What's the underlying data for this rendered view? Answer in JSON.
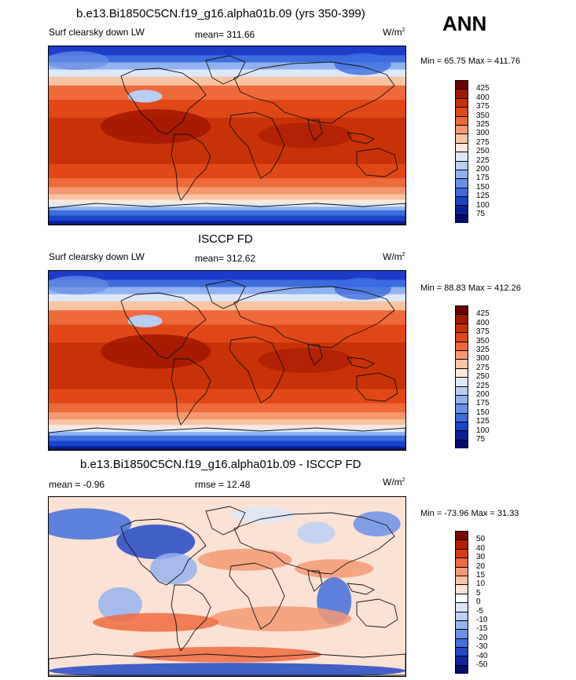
{
  "season": "ANN",
  "colors": {
    "pos": [
      "#fbe6d6",
      "#f9c5a5",
      "#f5a07a",
      "#ef7a50",
      "#e85a30",
      "#de4216",
      "#c83008",
      "#a81e02",
      "#8a1202",
      "#6b0a00"
    ],
    "neg": [
      "#dce8fb",
      "#bcd2f7",
      "#9cbcf3",
      "#7aa3ee",
      "#5a89e6",
      "#3c6fde",
      "#2455d4",
      "#1538b8",
      "#0a2090",
      "#030b6b"
    ]
  },
  "panels": [
    {
      "title": "b.e13.Bi1850C5CN.f19_g16.alpha01b.09 (yrs 350-399)",
      "left_label": "Surf clearsky down LW",
      "center_label": "mean= 311.66",
      "units": "W/m",
      "units_sup": "2",
      "minmax": "Min =  65.75 Max = 411.76"
    },
    {
      "title": "ISCCP FD",
      "left_label": "Surf clearsky down LW",
      "center_label": "mean= 312.62",
      "units": "W/m",
      "units_sup": "2",
      "minmax": "Min =  88.83 Max = 412.26"
    },
    {
      "title": "b.e13.Bi1850C5CN.f19_g16.alpha01b.09 - ISCCP FD",
      "left_label": "mean =  -0.96",
      "center_label": "rmse =  12.48",
      "units": "W/m",
      "units_sup": "2",
      "minmax": "Min = -73.96 Max =  31.33"
    }
  ],
  "chart_data": [
    {
      "type": "heatmap",
      "title": "b.e13.Bi1850C5CN.f19_g16.alpha01b.09 (yrs 350-399)",
      "variable": "Surf clearsky down LW",
      "units": "W/m2",
      "mean": 311.66,
      "min": 65.75,
      "max": 411.76,
      "colorbar_levels": [
        "425",
        "400",
        "375",
        "350",
        "325",
        "300",
        "275",
        "250",
        "225",
        "200",
        "175",
        "150",
        "125",
        "100",
        "75"
      ]
    },
    {
      "type": "heatmap",
      "title": "ISCCP FD",
      "variable": "Surf clearsky down LW",
      "units": "W/m2",
      "mean": 312.62,
      "min": 88.83,
      "max": 412.26,
      "colorbar_levels": [
        "425",
        "400",
        "375",
        "350",
        "325",
        "300",
        "275",
        "250",
        "225",
        "200",
        "175",
        "150",
        "125",
        "100",
        "75"
      ]
    },
    {
      "type": "heatmap",
      "title": "b.e13.Bi1850C5CN.f19_g16.alpha01b.09 - ISCCP FD",
      "units": "W/m2",
      "mean": -0.96,
      "rmse": 12.48,
      "min": -73.96,
      "max": 31.33,
      "colorbar_levels": [
        "50",
        "40",
        "30",
        "20",
        "15",
        "10",
        "5",
        "0",
        "-5",
        "-10",
        "-15",
        "-20",
        "-30",
        "-40",
        "-50"
      ]
    }
  ]
}
